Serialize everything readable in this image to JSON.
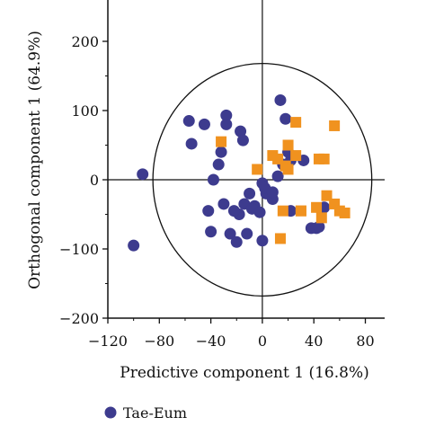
{
  "chart_data": {
    "type": "scatter",
    "xlabel": "Predictive component 1 (16.8%)",
    "ylabel": "Orthogonal component 1 (64.9%)",
    "xlim": [
      -120,
      95
    ],
    "ylim": [
      -200,
      265
    ],
    "xticks": [
      -120,
      -80,
      -40,
      0,
      40,
      80
    ],
    "yticks": [
      200,
      100,
      0,
      -100,
      -200
    ],
    "xtick_labels": [
      "−120",
      "−80",
      "−40",
      "0",
      "40",
      "80"
    ],
    "ytick_labels": [
      "200",
      "100",
      "0",
      "−100",
      "−200"
    ],
    "ellipse": {
      "cx": 0,
      "cy": 0,
      "rx": 85,
      "ry": 168
    },
    "grid": false,
    "legend_position": "bottom-left",
    "series": [
      {
        "name": "Tae-Eum",
        "marker": "circle",
        "color": "#3d3b8e",
        "x": [
          -93,
          -100,
          -57,
          -45,
          -55,
          -28,
          -28,
          -17,
          -15,
          -32,
          -34,
          -38,
          -42,
          -40,
          -25,
          -20,
          -12,
          -18,
          -22,
          -30,
          -14,
          -6,
          -8,
          -2,
          -10,
          3,
          0,
          2,
          8,
          14,
          18,
          20,
          22,
          22,
          32,
          38,
          42,
          44,
          48,
          8,
          0,
          16,
          12
        ],
        "y": [
          8,
          -95,
          85,
          80,
          52,
          93,
          80,
          70,
          57,
          40,
          22,
          0,
          -45,
          -75,
          -78,
          -90,
          -78,
          -50,
          -45,
          -35,
          -35,
          -38,
          -42,
          -47,
          -20,
          -20,
          -5,
          -12,
          -28,
          115,
          88,
          40,
          28,
          -45,
          28,
          -70,
          -70,
          -68,
          -40,
          -18,
          -88,
          22,
          5
        ]
      },
      {
        "name": "",
        "marker": "square",
        "color": "#f0921f",
        "x": [
          -32,
          -4,
          8,
          12,
          18,
          20,
          20,
          26,
          26,
          30,
          30,
          42,
          46,
          44,
          48,
          50,
          56,
          56,
          60,
          64,
          14,
          16
        ],
        "y": [
          55,
          15,
          35,
          30,
          20,
          50,
          15,
          83,
          35,
          -45,
          -45,
          -40,
          -55,
          30,
          30,
          -23,
          -35,
          78,
          -45,
          -48,
          -85,
          -45
        ]
      }
    ],
    "legend": [
      {
        "label": "Tae-Eum",
        "marker": "circle",
        "color": "#3d3b8e"
      }
    ]
  }
}
